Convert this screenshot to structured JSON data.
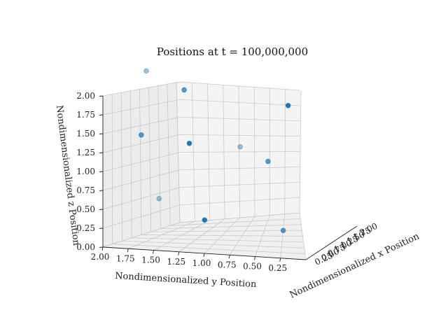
{
  "chart_data": {
    "type": "scatter3d",
    "title": "Positions at t = 100,000,000",
    "xlabel": "Nondimensionalized x Position",
    "ylabel": "Nondimensionalized y Position",
    "zlabel": "Nondimensionalized z Position",
    "x_ticks": [
      "0.25",
      "0.50",
      "0.75",
      "1.00",
      "1.25",
      "1.50",
      "1.75",
      "2.00"
    ],
    "y_ticks": [
      "2.00",
      "1.75",
      "1.50",
      "1.25",
      "1.00",
      "0.75",
      "0.50",
      "0.25"
    ],
    "z_ticks": [
      "0.00",
      "0.25",
      "0.50",
      "0.75",
      "1.00",
      "1.25",
      "1.50",
      "1.75",
      "2.00"
    ],
    "xlim": [
      0.0,
      2.0
    ],
    "ylim": [
      0.0,
      2.0
    ],
    "zlim": [
      0.0,
      2.0
    ],
    "point_color": "#1f77b4",
    "points": [
      {
        "x": 1.5,
        "y": 1.95,
        "z": 2.0,
        "alpha": 0.45
      },
      {
        "x": 0.6,
        "y": 1.35,
        "z": 2.0,
        "alpha": 0.75
      },
      {
        "x": 0.1,
        "y": 0.2,
        "z": 2.0,
        "alpha": 1.0
      },
      {
        "x": 1.5,
        "y": 2.0,
        "z": 1.15,
        "alpha": 0.75
      },
      {
        "x": 1.0,
        "y": 1.4,
        "z": 1.2,
        "alpha": 1.0
      },
      {
        "x": 1.6,
        "y": 1.05,
        "z": 1.05,
        "alpha": 0.45
      },
      {
        "x": 0.9,
        "y": 0.6,
        "z": 1.05,
        "alpha": 0.75
      },
      {
        "x": 1.8,
        "y": 1.9,
        "z": 0.25,
        "alpha": 0.45
      },
      {
        "x": 1.2,
        "y": 1.3,
        "z": 0.15,
        "alpha": 1.0
      },
      {
        "x": 1.1,
        "y": 0.5,
        "z": 0.1,
        "alpha": 0.75
      }
    ]
  }
}
